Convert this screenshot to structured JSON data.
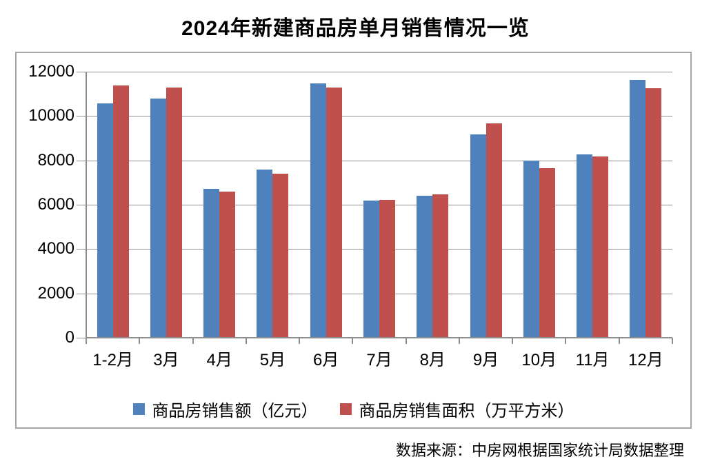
{
  "page": {
    "title": "2024年新建商品房单月销售情况一览",
    "source_note": "数据来源：中房网根据国家统计局数据整理"
  },
  "colors": {
    "series1": "#4F81BD",
    "series2": "#C0504D",
    "gridline": "#8E8E8E",
    "axis": "#8E8E8E",
    "frame_border": "#A6A6A6",
    "text": "#000000",
    "background": "#FFFFFF"
  },
  "chart_data": {
    "type": "bar",
    "title": "2024年新建商品房单月销售情况一览",
    "categories": [
      "1-2月",
      "3月",
      "4月",
      "5月",
      "6月",
      "7月",
      "8月",
      "9月",
      "10月",
      "11月",
      "12月"
    ],
    "series": [
      {
        "name": "商品房销售额（亿元）",
        "color": "#4F81BD",
        "values": [
          10566,
          10789,
          6712,
          7598,
          11468,
          6197,
          6393,
          9157,
          7975,
          8270,
          11625
        ]
      },
      {
        "name": "商品房销售面积（万平方米）",
        "color": "#C0504D",
        "values": [
          11369,
          11299,
          6584,
          7390,
          11274,
          6233,
          6453,
          9682,
          7646,
          8188,
          11267
        ]
      }
    ],
    "xlabel": "",
    "ylabel": "",
    "ylim": [
      0,
      12000
    ],
    "yticks": [
      0,
      2000,
      4000,
      6000,
      8000,
      10000,
      12000
    ],
    "grid": true,
    "legend_position": "bottom"
  }
}
